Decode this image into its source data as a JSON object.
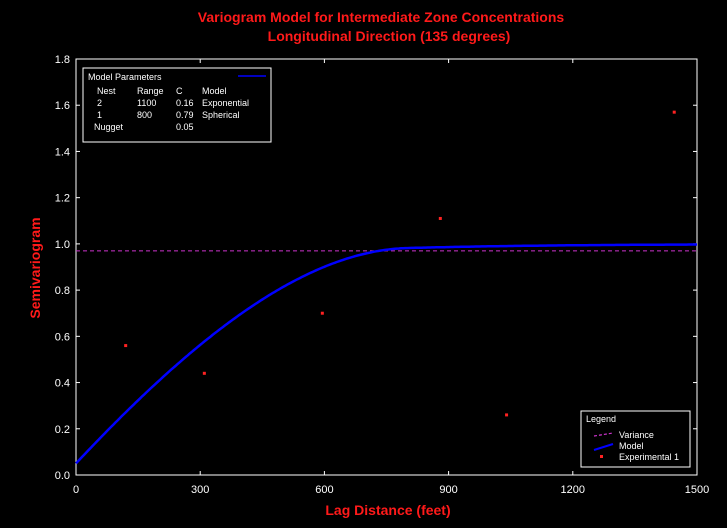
{
  "chart_data": {
    "type": "scatter",
    "title": "Variogram Model for Intermediate Zone Concentrations",
    "subtitle": "Longitudinal Direction (135 degrees)",
    "xlabel": "Lag Distance (feet)",
    "ylabel": "Semivariogram",
    "xlim": [
      0,
      1500
    ],
    "ylim": [
      0,
      1.8
    ],
    "x_ticks": [
      "0",
      "300",
      "600",
      "900",
      "1200",
      "1500"
    ],
    "y_ticks": [
      "0.0",
      "0.2",
      "0.4",
      "0.6",
      "0.8",
      "1.0",
      "1.2",
      "1.4",
      "1.6",
      "1.8"
    ],
    "grid": false,
    "variance": 0.97,
    "model": {
      "title": "Model Parameters",
      "headers": [
        "Nest",
        "Range",
        "C",
        "Model"
      ],
      "nests": [
        {
          "nest": "2",
          "range": "1100",
          "c": "0.16",
          "model": "Exponential"
        },
        {
          "nest": "1",
          "range": "800",
          "c": "0.79",
          "model": "Spherical"
        }
      ],
      "nugget_label": "Nugget",
      "nugget": "0.05",
      "params": {
        "nugget": 0.05,
        "sph_c": 0.79,
        "sph_a": 800,
        "exp_c": 0.16,
        "exp_a": 1100
      }
    },
    "series": [
      {
        "name": "Variance",
        "type": "hline",
        "color": "#cc33cc"
      },
      {
        "name": "Model",
        "type": "line",
        "color": "#0000ff"
      },
      {
        "name": "Experimental 1",
        "type": "scatter",
        "color": "#ff2222",
        "x": [
          120,
          310,
          595,
          880,
          1040,
          1445
        ],
        "y": [
          0.56,
          0.44,
          0.7,
          1.11,
          0.26,
          1.57
        ]
      }
    ],
    "legend": {
      "title": "Legend",
      "entries": [
        "Variance",
        "Model",
        "Experimental 1"
      ],
      "placement": "bottom-right"
    }
  }
}
